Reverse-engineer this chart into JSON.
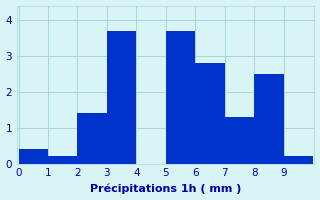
{
  "categories": [
    0,
    1,
    2,
    3,
    4,
    5,
    6,
    7,
    8,
    9
  ],
  "values": [
    0.4,
    0.2,
    1.4,
    3.7,
    0.0,
    3.7,
    2.8,
    1.3,
    2.5,
    0.2
  ],
  "bar_color": "#0033cc",
  "background_color": "#d8f4f4",
  "xlabel": "Précipitations 1h ( mm )",
  "ylim": [
    0,
    4.4
  ],
  "xlim": [
    -0.05,
    10.05
  ],
  "yticks": [
    0,
    1,
    2,
    3,
    4
  ],
  "xticks": [
    0,
    1,
    2,
    3,
    4,
    5,
    6,
    7,
    8,
    9
  ],
  "xticklabels": [
    "0",
    "1",
    "2",
    "3",
    "4",
    "5",
    "6",
    "7",
    "8",
    "9"
  ],
  "grid_color": "#aad4d4",
  "tick_color": "#0000aa",
  "label_color": "#0000aa",
  "bar_width": 1.0,
  "xlabel_fontsize": 8,
  "tick_fontsize": 7.5
}
